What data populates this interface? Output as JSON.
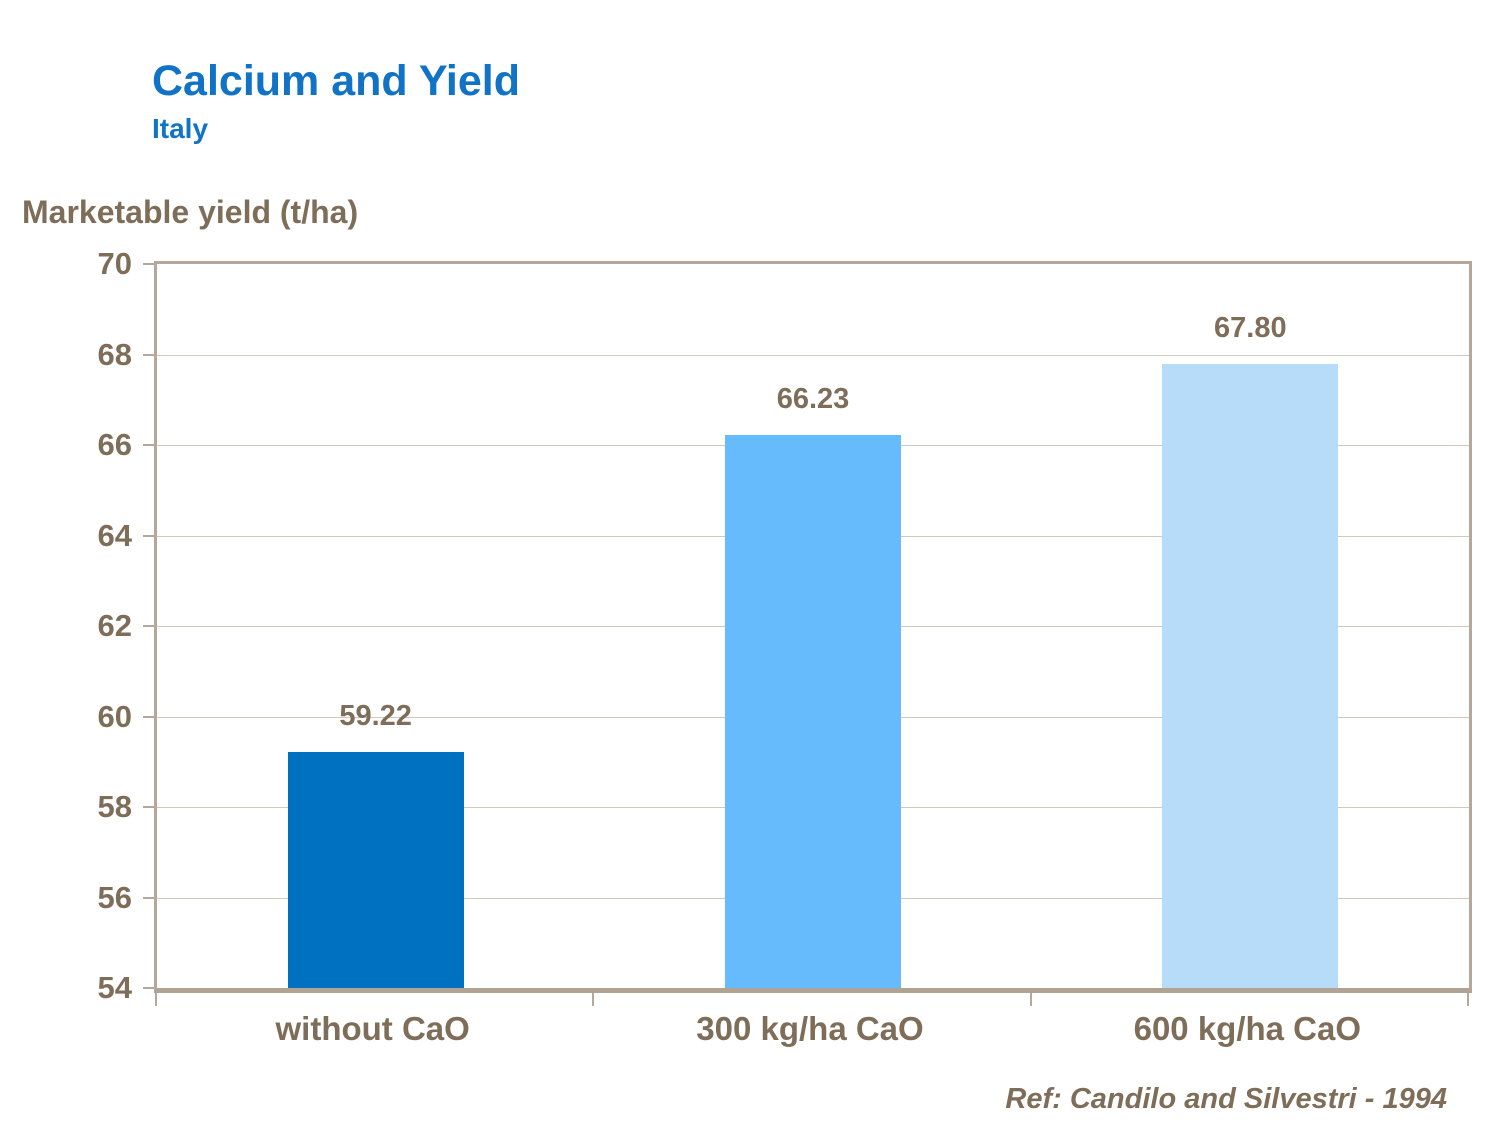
{
  "header": {
    "title": "Calcium and Yield",
    "subtitle": "Italy"
  },
  "axis": {
    "ylabel": "Marketable yield (t/ha)"
  },
  "footer": {
    "reference": "Ref: Candilo and Silvestri - 1994"
  },
  "colors": {
    "title_blue": "#1173C5",
    "text_taupe": "#7E6D58",
    "plot_border": "#b5a89a",
    "gridline": "#d2c9bc",
    "bar_1": "#0070C0",
    "bar_2": "#66BBFC",
    "bar_3": "#B7DCFA"
  },
  "chart_data": {
    "type": "bar",
    "title": "Calcium and Yield",
    "subtitle": "Italy",
    "ylabel": "Marketable yield (t/ha)",
    "categories": [
      "without CaO",
      "300 kg/ha CaO",
      "600 kg/ha CaO"
    ],
    "values": [
      59.22,
      66.23,
      67.8
    ],
    "value_labels": [
      "59.22",
      "66.23",
      "67.80"
    ],
    "bar_colors": [
      "#0070C0",
      "#66BBFC",
      "#B7DCFA"
    ],
    "ylim": [
      54,
      70
    ],
    "ytick_step": 2,
    "ytick_labels": [
      "54",
      "56",
      "58",
      "60",
      "62",
      "64",
      "66",
      "68",
      "70"
    ],
    "grid": true,
    "legend": false,
    "annotation": "Ref: Candilo and Silvestri - 1994"
  }
}
